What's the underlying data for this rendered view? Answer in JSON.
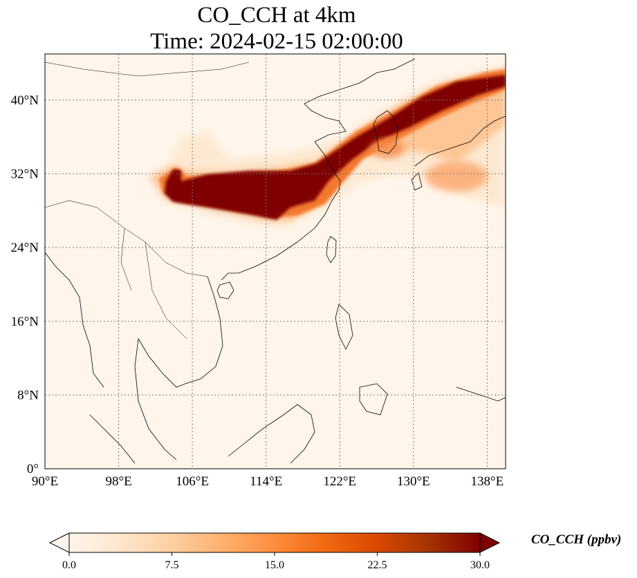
{
  "title": {
    "line1": "CO_CCH at 4km",
    "line2": "Time: 2024-02-15 02:00:00"
  },
  "map": {
    "lon_range": [
      90,
      140
    ],
    "lat_range": [
      0,
      45
    ],
    "lon_ticks": [
      {
        "value": 90,
        "label": "90°E"
      },
      {
        "value": 98,
        "label": "98°E"
      },
      {
        "value": 106,
        "label": "106°E"
      },
      {
        "value": 114,
        "label": "114°E"
      },
      {
        "value": 122,
        "label": "122°E"
      },
      {
        "value": 130,
        "label": "130°E"
      },
      {
        "value": 138,
        "label": "138°E"
      }
    ],
    "lat_ticks": [
      {
        "value": 0,
        "label": "0°"
      },
      {
        "value": 8,
        "label": "8°N"
      },
      {
        "value": 16,
        "label": "16°N"
      },
      {
        "value": 24,
        "label": "24°N"
      },
      {
        "value": 32,
        "label": "32°N"
      },
      {
        "value": 40,
        "label": "40°N"
      }
    ],
    "gridlines": true,
    "background_color": "#fff5eb"
  },
  "colorbar": {
    "label": "CO_CCH (ppbv)",
    "min": 0.0,
    "max": 30.0,
    "extend": "both",
    "ticks": [
      "0.0",
      "7.5",
      "15.0",
      "22.5",
      "30.0"
    ],
    "colors": [
      "#fff5eb",
      "#fee6ce",
      "#fdd0a2",
      "#fdae6b",
      "#fd8d3c",
      "#f16913",
      "#d94801",
      "#a63603",
      "#7f0000"
    ]
  }
}
